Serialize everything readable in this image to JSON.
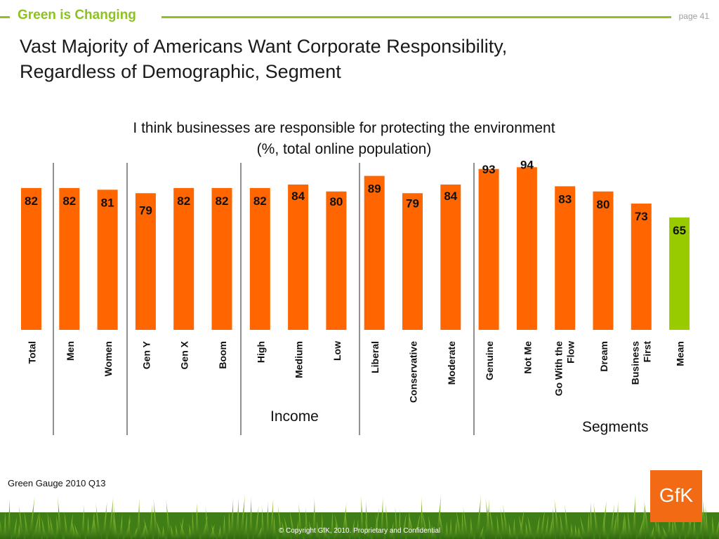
{
  "header": {
    "section": "Green is Changing",
    "page": "page 41"
  },
  "title_lines": [
    "Vast Majority of Americans Want Corporate Responsibility,",
    "Regardless of Demographic, Segment"
  ],
  "chart_data": {
    "type": "bar",
    "title": [
      "I think businesses are responsible for protecting the environment",
      "(%, total online population)"
    ],
    "xlabel": "",
    "ylabel": "",
    "ylim": [
      0,
      100
    ],
    "grid": false,
    "categories": [
      "Total",
      "Men",
      "Women",
      "Gen Y",
      "Gen X",
      "Boom",
      "High",
      "Medium",
      "Low",
      "Liberal",
      "Conservative",
      "Moderate",
      "Genuine",
      "Not Me",
      "Go With the Flow",
      "Dream",
      "Business First",
      "Mean"
    ],
    "values": [
      82,
      82,
      81,
      79,
      82,
      82,
      82,
      84,
      80,
      89,
      79,
      84,
      93,
      94,
      83,
      80,
      73,
      65
    ],
    "bar_colors": [
      "#ff6600",
      "#ff6600",
      "#ff6600",
      "#ff6600",
      "#ff6600",
      "#ff6600",
      "#ff6600",
      "#ff6600",
      "#ff6600",
      "#ff6600",
      "#ff6600",
      "#ff6600",
      "#ff6600",
      "#ff6600",
      "#ff6600",
      "#ff6600",
      "#ff6600",
      "#99cc00"
    ],
    "group_labels": [
      "Income",
      "Segments"
    ]
  },
  "source": "Green Gauge 2010 Q13",
  "copyright": "© Copyright GfK, 2010.  Proprietary and Confidential",
  "logo": "GfK",
  "colors": {
    "accent_green": "#8dc21f",
    "bar_orange": "#ff6600",
    "mean_green": "#99cc00"
  }
}
